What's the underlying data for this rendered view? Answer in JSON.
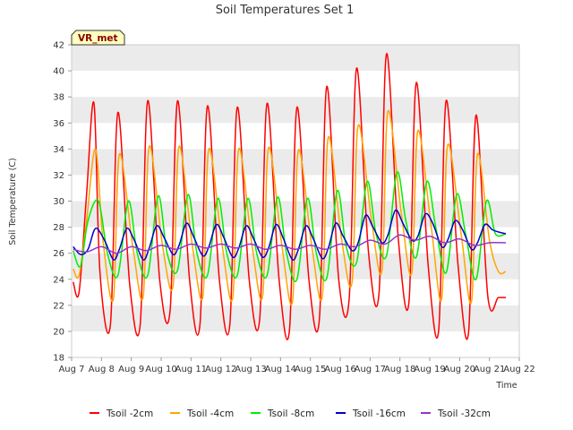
{
  "chart_data": {
    "type": "line",
    "title": "Soil Temperatures Set 1",
    "xlabel": "Time",
    "ylabel": "Soil Temperature (C)",
    "badge": "VR_met",
    "ylim": [
      18,
      42
    ],
    "yticks": [
      18,
      20,
      22,
      24,
      26,
      28,
      30,
      32,
      34,
      36,
      38,
      40,
      42
    ],
    "xlim": [
      7,
      22
    ],
    "x_tick_labels": [
      "Aug 7",
      "Aug 8",
      "Aug 9",
      "Aug 10",
      "Aug 11",
      "Aug 12",
      "Aug 13",
      "Aug 14",
      "Aug 15",
      "Aug 16",
      "Aug 17",
      "Aug 18",
      "Aug 19",
      "Aug 20",
      "Aug 21",
      "Aug 22"
    ],
    "x_unit": "day of August",
    "grid": "horizontal bands",
    "legend_position": "bottom",
    "series": [
      {
        "name": "Tsoil -2cm",
        "color": "#ff0000",
        "x": [
          7.05,
          7.25,
          7.5,
          7.75,
          7.95,
          8.3,
          8.55,
          8.95,
          9.3,
          9.55,
          9.95,
          10.3,
          10.55,
          10.95,
          11.3,
          11.55,
          11.95,
          12.3,
          12.55,
          12.95,
          13.3,
          13.55,
          13.95,
          14.3,
          14.55,
          14.95,
          15.3,
          15.55,
          15.95,
          16.3,
          16.55,
          16.95,
          17.3,
          17.55,
          17.95,
          18.3,
          18.55,
          18.95,
          19.3,
          19.55,
          19.95,
          20.3,
          20.55,
          20.95,
          21.3,
          21.55
        ],
        "y": [
          23.8,
          23.0,
          30.5,
          37.5,
          24.5,
          20.5,
          36.8,
          23.5,
          20.6,
          37.7,
          24.0,
          21.6,
          37.7,
          24.0,
          20.5,
          37.3,
          24.0,
          20.5,
          37.2,
          24.0,
          20.9,
          37.5,
          24.0,
          20.1,
          37.2,
          24.0,
          20.9,
          38.8,
          24.0,
          22.5,
          40.2,
          26.0,
          22.9,
          41.3,
          27.0,
          22.2,
          39.1,
          25.0,
          20.1,
          37.7,
          25.0,
          19.9,
          36.6,
          22.6,
          22.6,
          22.6
        ]
      },
      {
        "name": "Tsoil -4cm",
        "color": "#ffa500",
        "x": [
          7.05,
          7.25,
          7.5,
          7.8,
          8.05,
          8.4,
          8.6,
          9.05,
          9.4,
          9.6,
          10.05,
          10.4,
          10.6,
          11.05,
          11.4,
          11.6,
          12.05,
          12.4,
          12.6,
          13.05,
          13.4,
          13.6,
          14.05,
          14.4,
          14.6,
          15.05,
          15.4,
          15.6,
          16.05,
          16.4,
          16.6,
          17.05,
          17.4,
          17.6,
          18.05,
          18.4,
          18.6,
          19.05,
          19.4,
          19.6,
          20.05,
          20.4,
          20.6,
          21.0,
          21.3,
          21.55
        ],
        "y": [
          24.8,
          24.3,
          28.5,
          34.0,
          27.0,
          22.5,
          33.6,
          26.5,
          22.7,
          34.2,
          26.5,
          23.5,
          34.2,
          26.5,
          22.7,
          34.0,
          26.5,
          22.6,
          34.0,
          26.5,
          22.7,
          34.1,
          26.5,
          22.3,
          33.9,
          26.5,
          22.7,
          34.9,
          27.0,
          23.8,
          35.8,
          28.5,
          24.7,
          36.9,
          29.0,
          24.5,
          35.4,
          28.0,
          22.5,
          34.3,
          27.5,
          22.3,
          33.6,
          27.0,
          24.6,
          24.6
        ]
      },
      {
        "name": "Tsoil -8cm",
        "color": "#00ee00",
        "x": [
          7.05,
          7.3,
          7.55,
          7.9,
          8.2,
          8.55,
          8.9,
          9.2,
          9.55,
          9.9,
          10.2,
          10.55,
          10.9,
          11.2,
          11.55,
          11.9,
          12.2,
          12.55,
          12.9,
          13.2,
          13.55,
          13.9,
          14.2,
          14.55,
          14.9,
          15.2,
          15.55,
          15.9,
          16.2,
          16.55,
          16.9,
          17.2,
          17.55,
          17.9,
          18.2,
          18.55,
          18.9,
          19.2,
          19.55,
          19.9,
          20.2,
          20.55,
          20.9,
          21.2,
          21.55
        ],
        "y": [
          26.2,
          25.0,
          28.5,
          30.0,
          26.0,
          24.3,
          30.0,
          26.0,
          24.3,
          30.4,
          26.0,
          24.7,
          30.5,
          26.0,
          24.3,
          30.2,
          26.0,
          24.3,
          30.2,
          26.0,
          24.3,
          30.3,
          26.0,
          24.0,
          30.2,
          26.0,
          24.1,
          30.8,
          26.5,
          25.3,
          31.5,
          27.5,
          25.8,
          32.2,
          28.5,
          25.7,
          31.5,
          28.0,
          24.5,
          30.5,
          27.5,
          24.0,
          30.0,
          27.5,
          27.5
        ]
      },
      {
        "name": "Tsoil -16cm",
        "color": "#0000cd",
        "x": [
          7.05,
          7.3,
          7.55,
          7.8,
          8.1,
          8.4,
          8.6,
          8.85,
          9.1,
          9.4,
          9.6,
          9.85,
          10.1,
          10.4,
          10.6,
          10.85,
          11.1,
          11.4,
          11.6,
          11.85,
          12.1,
          12.4,
          12.6,
          12.85,
          13.1,
          13.4,
          13.6,
          13.85,
          14.1,
          14.4,
          14.6,
          14.85,
          15.1,
          15.4,
          15.6,
          15.85,
          16.1,
          16.4,
          16.6,
          16.85,
          17.1,
          17.4,
          17.6,
          17.85,
          18.1,
          18.4,
          18.6,
          18.85,
          19.1,
          19.4,
          19.6,
          19.85,
          20.1,
          20.4,
          20.6,
          20.85,
          21.1,
          21.35,
          21.55
        ],
        "y": [
          26.5,
          25.9,
          26.3,
          27.9,
          27.0,
          25.5,
          26.3,
          27.9,
          27.0,
          25.5,
          26.4,
          28.1,
          27.2,
          25.9,
          26.6,
          28.3,
          27.2,
          25.8,
          26.5,
          28.2,
          27.2,
          25.7,
          26.4,
          28.1,
          27.1,
          25.7,
          26.4,
          28.2,
          27.1,
          25.5,
          26.3,
          28.1,
          27.1,
          25.6,
          26.4,
          28.3,
          27.3,
          26.2,
          26.8,
          28.9,
          28.0,
          26.8,
          27.4,
          29.3,
          28.3,
          27.0,
          27.3,
          29.0,
          28.3,
          26.5,
          27.0,
          28.5,
          27.8,
          26.3,
          26.8,
          28.2,
          27.8,
          27.6,
          27.5
        ]
      },
      {
        "name": "Tsoil -32cm",
        "color": "#9932cc",
        "x": [
          7.05,
          7.5,
          8.0,
          8.5,
          9.0,
          9.5,
          10.0,
          10.5,
          11.0,
          11.5,
          12.0,
          12.5,
          13.0,
          13.5,
          14.0,
          14.5,
          15.0,
          15.5,
          16.0,
          16.5,
          17.0,
          17.5,
          18.0,
          18.5,
          19.0,
          19.5,
          20.0,
          20.5,
          21.0,
          21.55
        ],
        "y": [
          26.3,
          26.1,
          26.5,
          26.0,
          26.5,
          26.2,
          26.6,
          26.3,
          26.7,
          26.4,
          26.7,
          26.4,
          26.7,
          26.3,
          26.6,
          26.3,
          26.6,
          26.3,
          26.7,
          26.5,
          27.0,
          26.7,
          27.4,
          27.0,
          27.3,
          26.8,
          27.1,
          26.6,
          26.8,
          26.8
        ]
      }
    ]
  }
}
